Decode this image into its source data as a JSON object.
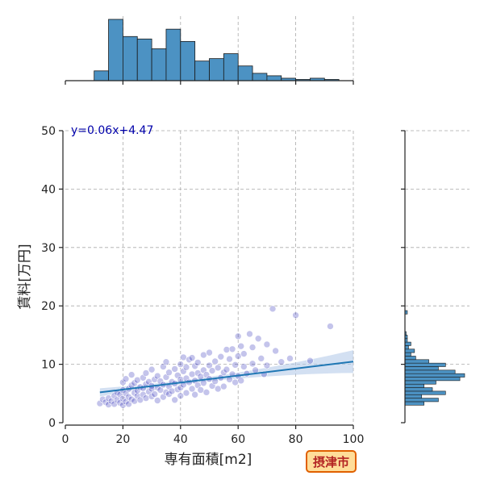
{
  "chart_data": {
    "type": "scatter",
    "title": "",
    "xlabel": "専有面積[m2]",
    "ylabel": "賃料[万円]",
    "xlim": [
      0,
      100
    ],
    "ylim": [
      0,
      50
    ],
    "xticks": [
      0,
      20,
      40,
      60,
      80,
      100
    ],
    "yticks": [
      0,
      10,
      20,
      30,
      40,
      50
    ],
    "grid": true,
    "regression": {
      "label": "y=0.06x+4.47",
      "label_color": "#0000aa",
      "slope": 0.06,
      "intercept": 4.47,
      "x_range": [
        12,
        100
      ],
      "line_color": "#1f77b4",
      "band_color": "#aec7e8"
    },
    "point_color": "#2a2ab8",
    "points": [
      [
        12,
        3.3
      ],
      [
        13,
        4.0
      ],
      [
        14,
        3.5
      ],
      [
        15,
        3.1
      ],
      [
        15,
        4.2
      ],
      [
        16,
        3.7
      ],
      [
        17,
        3.2
      ],
      [
        17,
        4.6
      ],
      [
        18,
        3.9
      ],
      [
        18,
        5.2
      ],
      [
        19,
        3.4
      ],
      [
        19,
        4.8
      ],
      [
        20,
        3.0
      ],
      [
        20,
        4.1
      ],
      [
        20,
        5.6
      ],
      [
        20,
        6.9
      ],
      [
        21,
        3.6
      ],
      [
        21,
        5.0
      ],
      [
        21,
        7.5
      ],
      [
        22,
        4.4
      ],
      [
        22,
        5.8
      ],
      [
        22,
        3.2
      ],
      [
        23,
        6.4
      ],
      [
        23,
        4.0
      ],
      [
        23,
        8.2
      ],
      [
        24,
        5.1
      ],
      [
        24,
        3.7
      ],
      [
        24,
        6.8
      ],
      [
        25,
        4.6
      ],
      [
        25,
        7.3
      ],
      [
        25,
        5.5
      ],
      [
        26,
        3.9
      ],
      [
        26,
        6.1
      ],
      [
        27,
        4.8
      ],
      [
        27,
        7.7
      ],
      [
        27,
        5.9
      ],
      [
        28,
        6.6
      ],
      [
        28,
        4.2
      ],
      [
        28,
        8.5
      ],
      [
        29,
        5.3
      ],
      [
        29,
        7.0
      ],
      [
        30,
        4.5
      ],
      [
        30,
        6.3
      ],
      [
        30,
        9.1
      ],
      [
        30,
        5.8
      ],
      [
        31,
        7.4
      ],
      [
        31,
        4.9
      ],
      [
        32,
        6.0
      ],
      [
        32,
        8.0
      ],
      [
        32,
        3.8
      ],
      [
        33,
        5.6
      ],
      [
        33,
        7.1
      ],
      [
        34,
        6.5
      ],
      [
        34,
        9.6
      ],
      [
        34,
        4.4
      ],
      [
        35,
        5.2
      ],
      [
        35,
        7.8
      ],
      [
        35,
        10.4
      ],
      [
        36,
        6.2
      ],
      [
        36,
        4.9
      ],
      [
        36,
        8.6
      ],
      [
        37,
        7.0
      ],
      [
        37,
        5.4
      ],
      [
        38,
        9.2
      ],
      [
        38,
        6.7
      ],
      [
        38,
        3.9
      ],
      [
        39,
        8.1
      ],
      [
        39,
        5.7
      ],
      [
        40,
        7.4
      ],
      [
        40,
        10.0
      ],
      [
        40,
        6.0
      ],
      [
        40,
        4.6
      ],
      [
        41,
        8.8
      ],
      [
        41,
        11.2
      ],
      [
        41,
        6.5
      ],
      [
        42,
        7.6
      ],
      [
        42,
        5.1
      ],
      [
        42,
        9.5
      ],
      [
        43,
        10.8
      ],
      [
        43,
        6.9
      ],
      [
        44,
        8.3
      ],
      [
        44,
        5.8
      ],
      [
        44,
        11.1
      ],
      [
        45,
        7.2
      ],
      [
        45,
        9.7
      ],
      [
        45,
        4.8
      ],
      [
        46,
        8.5
      ],
      [
        46,
        6.4
      ],
      [
        46,
        10.3
      ],
      [
        47,
        7.9
      ],
      [
        47,
        5.6
      ],
      [
        48,
        9.0
      ],
      [
        48,
        11.6
      ],
      [
        48,
        6.8
      ],
      [
        49,
        8.2
      ],
      [
        49,
        5.2
      ],
      [
        50,
        7.5
      ],
      [
        50,
        9.8
      ],
      [
        50,
        12.0
      ],
      [
        51,
        6.3
      ],
      [
        51,
        8.9
      ],
      [
        52,
        10.5
      ],
      [
        52,
        7.1
      ],
      [
        53,
        5.8
      ],
      [
        53,
        9.4
      ],
      [
        54,
        11.3
      ],
      [
        54,
        7.7
      ],
      [
        55,
        8.6
      ],
      [
        55,
        6.2
      ],
      [
        56,
        12.5
      ],
      [
        56,
        9.1
      ],
      [
        57,
        7.4
      ],
      [
        57,
        10.9
      ],
      [
        58,
        8.3
      ],
      [
        58,
        12.6
      ],
      [
        59,
        6.9
      ],
      [
        59,
        9.9
      ],
      [
        60,
        11.4
      ],
      [
        60,
        8.0
      ],
      [
        60,
        14.8
      ],
      [
        61,
        7.2
      ],
      [
        61,
        13.1
      ],
      [
        62,
        9.6
      ],
      [
        62,
        11.8
      ],
      [
        63,
        8.4
      ],
      [
        64,
        15.2
      ],
      [
        65,
        10.1
      ],
      [
        65,
        12.9
      ],
      [
        66,
        9.0
      ],
      [
        67,
        14.4
      ],
      [
        68,
        11.0
      ],
      [
        69,
        8.3
      ],
      [
        70,
        9.8
      ],
      [
        70,
        13.4
      ],
      [
        72,
        19.5
      ],
      [
        73,
        12.3
      ],
      [
        75,
        10.4
      ],
      [
        78,
        11.0
      ],
      [
        80,
        18.4
      ],
      [
        85,
        10.6
      ],
      [
        92,
        16.5
      ]
    ],
    "top_histogram": {
      "variable": "専有面積[m2]",
      "bin_edges": [
        10,
        15,
        20,
        25,
        30,
        35,
        40,
        45,
        50,
        55,
        60,
        65,
        70,
        75,
        80,
        85,
        90,
        95
      ],
      "counts": [
        4,
        25,
        18,
        17,
        13,
        21,
        16,
        8,
        9,
        11,
        6,
        3,
        2,
        1,
        0.5,
        1,
        0.5
      ],
      "color": "#4c92c3"
    },
    "right_histogram": {
      "variable": "賃料[万円]",
      "bin_edges": [
        3,
        3.6,
        4.2,
        4.8,
        5.4,
        6,
        6.6,
        7.2,
        7.8,
        8.4,
        9,
        9.6,
        10.2,
        10.8,
        11.4,
        12,
        12.6,
        13.2,
        13.8,
        14.4,
        15,
        15.6,
        16.2,
        16.8,
        17.4,
        18,
        18.6,
        19.2
      ],
      "counts": [
        16,
        28,
        14,
        34,
        23,
        16,
        26,
        46,
        50,
        42,
        28,
        34,
        20,
        9,
        5,
        8,
        3,
        5,
        2,
        2,
        1,
        0,
        0,
        0,
        0,
        0,
        2
      ],
      "color": "#4c92c3"
    },
    "badge": {
      "text": "摂津市",
      "text_color": "#b22222",
      "fill": "#ffdd99",
      "border": "#e06000"
    }
  }
}
